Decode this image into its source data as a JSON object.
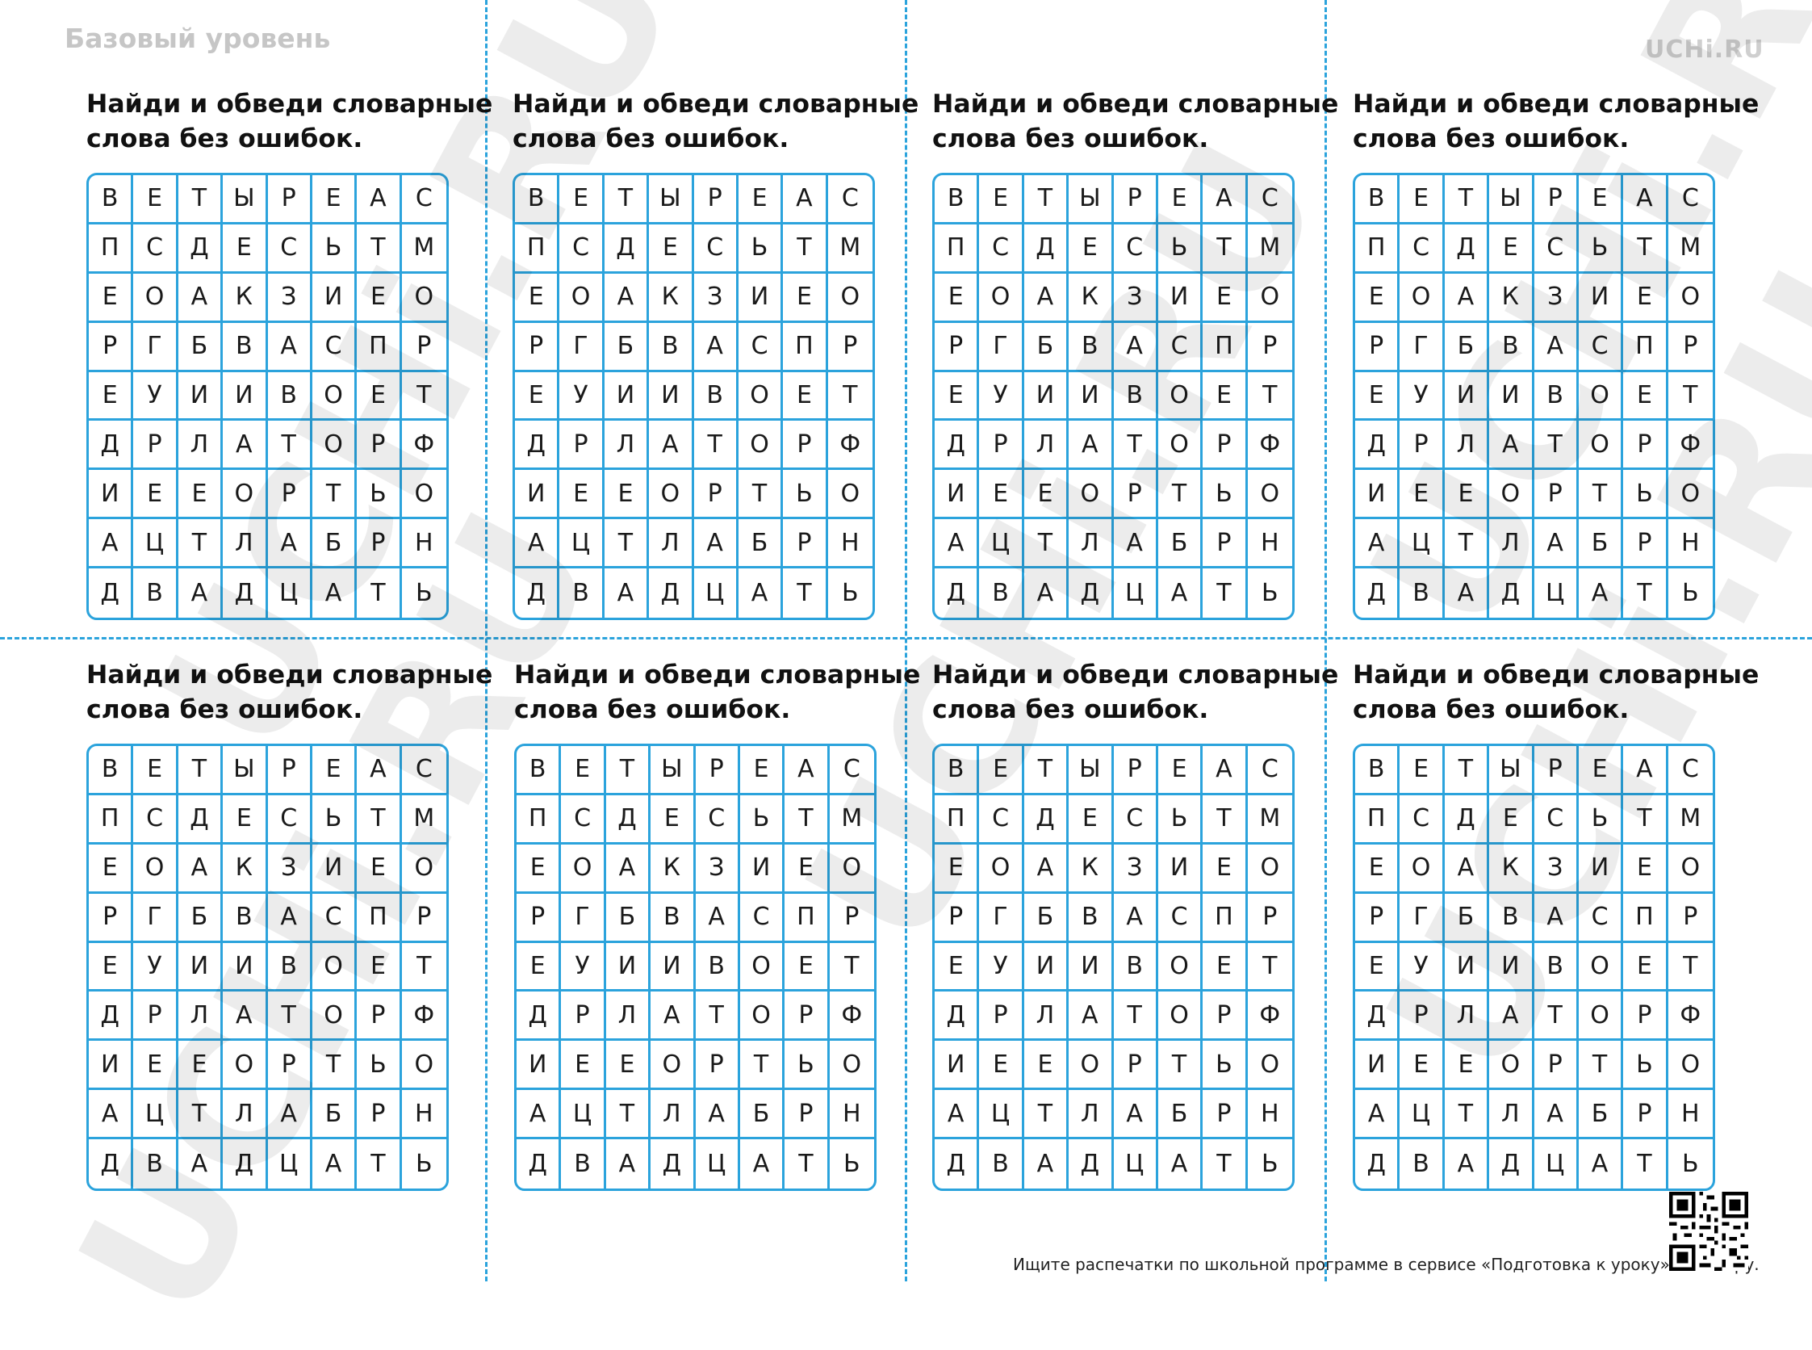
{
  "header": {
    "level": "Базовый уровень",
    "brand": "UCHi.RU"
  },
  "card_title": [
    "Найди и обведи словарные",
    "слова без ошибок."
  ],
  "grid_rows": [
    [
      "В",
      "Е",
      "Т",
      "Ы",
      "Р",
      "Е",
      "А",
      "С"
    ],
    [
      "П",
      "С",
      "Д",
      "Е",
      "С",
      "Ь",
      "Т",
      "М"
    ],
    [
      "Е",
      "О",
      "А",
      "К",
      "З",
      "И",
      "Е",
      "О"
    ],
    [
      "Р",
      "Г",
      "Б",
      "В",
      "А",
      "С",
      "П",
      "Р"
    ],
    [
      "Е",
      "У",
      "И",
      "И",
      "В",
      "О",
      "Е",
      "Т"
    ],
    [
      "Д",
      "Р",
      "Л",
      "А",
      "Т",
      "О",
      "Р",
      "Ф"
    ],
    [
      "И",
      "Е",
      "Е",
      "О",
      "Р",
      "Т",
      "Ь",
      "О"
    ],
    [
      "А",
      "Ц",
      "Т",
      "Л",
      "А",
      "Б",
      "Р",
      "Н"
    ],
    [
      "Д",
      "В",
      "А",
      "Д",
      "Ц",
      "А",
      "Т",
      "Ь"
    ]
  ],
  "watermark": "UCHi.RU",
  "footer": "Ищите распечатки по школьной программе в сервисе «Подготовка к уроку» от Учи.ру.",
  "colors": {
    "grid_line": "#2ba3dc",
    "cut_line": "#2ba3dc"
  }
}
